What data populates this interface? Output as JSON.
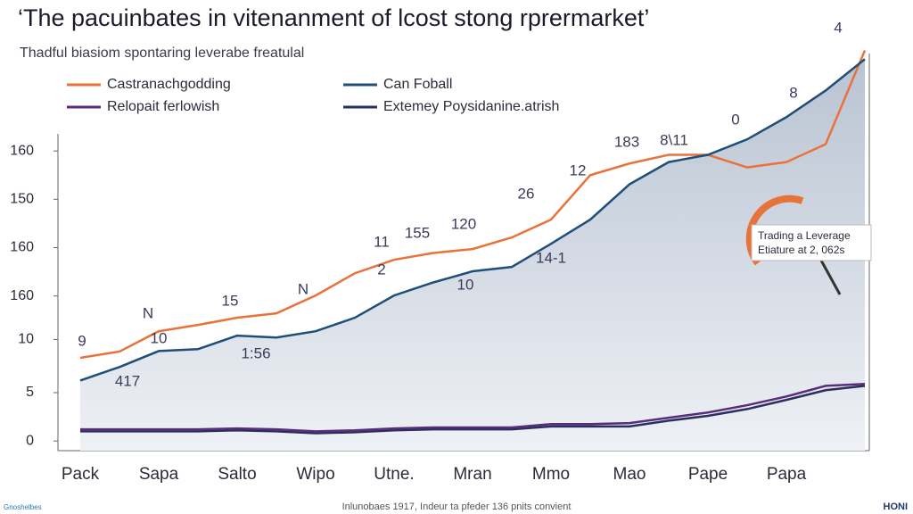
{
  "chart_data": {
    "type": "line",
    "title": "‘The pacuinbates in vitenanment of lcost stong rprermarket’",
    "subtitle": "Thadful biasiom spontaring leverabe freatulal",
    "categories": [
      "Pack",
      null,
      "Sapa",
      null,
      "Salto",
      null,
      "Wipo",
      null,
      "Utne.",
      null,
      "Mran",
      null,
      "Mmo",
      null,
      "Mao",
      null,
      "Pape",
      null,
      "Papa",
      null,
      null
    ],
    "ylim": [
      -0.2,
      8.2
    ],
    "yticks": [
      0,
      {
        "value": 1,
        "label": "5"
      },
      {
        "value": 2.1,
        "label": "10"
      },
      {
        "value": 3,
        "label": "160"
      },
      {
        "value": 4,
        "label": "160"
      },
      {
        "value": 5,
        "label": "150"
      },
      {
        "value": 6,
        "label": "160"
      }
    ],
    "series": [
      {
        "name": "Castranachgodding",
        "color": "#e8733a",
        "values": [
          1.72,
          1.85,
          2.27,
          2.4,
          2.55,
          2.64,
          3.01,
          3.47,
          3.75,
          3.89,
          3.97,
          4.21,
          4.58,
          5.5,
          5.74,
          5.92,
          5.92,
          5.66,
          5.77,
          6.14,
          8.08
        ]
      },
      {
        "name": "Can Foball",
        "color": "#1f4e79",
        "values": [
          1.25,
          1.53,
          1.86,
          1.9,
          2.18,
          2.14,
          2.27,
          2.55,
          3.01,
          3.28,
          3.51,
          3.6,
          4.08,
          4.58,
          5.31,
          5.77,
          5.92,
          6.24,
          6.7,
          7.25,
          7.9
        ]
      },
      {
        "name": "Relopait ferlowish",
        "color": "#5a2d7a",
        "values": [
          0.24,
          0.24,
          0.24,
          0.24,
          0.26,
          0.24,
          0.2,
          0.22,
          0.26,
          0.28,
          0.28,
          0.28,
          0.35,
          0.35,
          0.37,
          0.48,
          0.59,
          0.74,
          0.92,
          1.14,
          1.18
        ]
      },
      {
        "name": "Extemey Poysidanine.atrish",
        "color": "#2a2f5e",
        "values": [
          0.2,
          0.2,
          0.2,
          0.2,
          0.22,
          0.2,
          0.16,
          0.18,
          0.22,
          0.24,
          0.24,
          0.24,
          0.3,
          0.3,
          0.3,
          0.42,
          0.52,
          0.66,
          0.85,
          1.05,
          1.14
        ]
      }
    ],
    "area_under": 1,
    "annotations": [
      "9",
      "417",
      "N",
      "10",
      "1:56",
      "15",
      "N",
      "11",
      "155",
      "120",
      "26",
      "12",
      "183",
      "8\\11",
      "0",
      "8",
      "4",
      "14-1",
      "10",
      "2"
    ],
    "callout": [
      "Trading a Leverage",
      "Etiature at 2, 062s"
    ],
    "footer": "Inlunobaes 1917, Indeur ta pfeder 136 pnits convient",
    "logo_left": "Gnoshelbes",
    "logo_right": "HONI"
  }
}
